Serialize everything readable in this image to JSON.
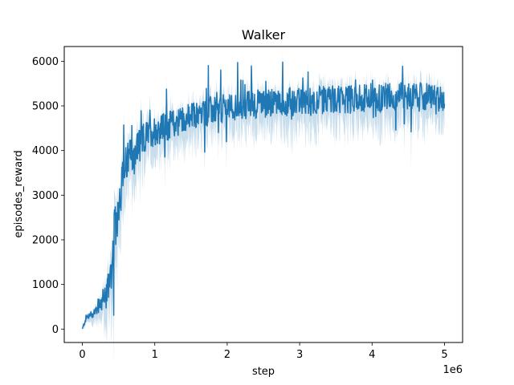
{
  "chart_data": {
    "type": "line",
    "title": "Walker",
    "xlabel": "step",
    "ylabel": "episodes_reward",
    "x_offset_label": "1e6",
    "xlim": [
      -0.25,
      5.25
    ],
    "ylim": [
      -300,
      6330
    ],
    "x_ticks": [
      0,
      1,
      2,
      3,
      4,
      5
    ],
    "x_tick_labels": [
      "0",
      "1",
      "2",
      "3",
      "4",
      "5"
    ],
    "y_ticks": [
      0,
      1000,
      2000,
      3000,
      4000,
      5000,
      6000
    ],
    "y_tick_labels": [
      "0",
      "1000",
      "2000",
      "3000",
      "4000",
      "5000",
      "6000"
    ],
    "grid": false,
    "series_color": "#1f77b4",
    "band_color": "#1f77b4",
    "series": [
      {
        "x": [
          0,
          0.05,
          0.1,
          0.15,
          0.2,
          0.25,
          0.3,
          0.35,
          0.4,
          0.45,
          0.5,
          0.55,
          0.6,
          0.7,
          0.8,
          0.9,
          1.0,
          1.2,
          1.4,
          1.6,
          1.8,
          2.0,
          2.2,
          2.4,
          2.6,
          2.8,
          3.0,
          3.2,
          3.4,
          3.6,
          3.8,
          4.0,
          4.2,
          4.4,
          4.6,
          4.8,
          5.0
        ],
        "mean": [
          0,
          250,
          300,
          350,
          450,
          550,
          700,
          900,
          1400,
          2200,
          2800,
          3300,
          3700,
          3950,
          4150,
          4350,
          4450,
          4550,
          4700,
          4800,
          4900,
          4950,
          5000,
          5050,
          5050,
          5100,
          5100,
          5100,
          5150,
          5150,
          5150,
          5200,
          5200,
          5200,
          5200,
          5200,
          5150
        ],
        "spread": [
          30,
          120,
          150,
          180,
          250,
          350,
          500,
          700,
          900,
          1000,
          900,
          800,
          750,
          700,
          650,
          600,
          600,
          550,
          550,
          550,
          550,
          550,
          550,
          550,
          550,
          550,
          550,
          550,
          550,
          550,
          550,
          550,
          550,
          550,
          550,
          550,
          500
        ]
      }
    ]
  }
}
